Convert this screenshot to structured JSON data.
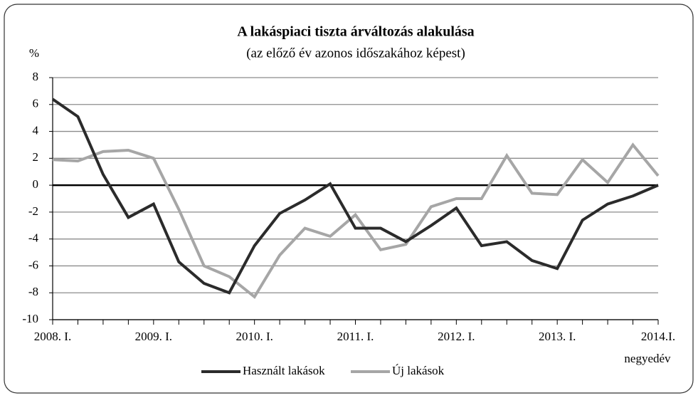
{
  "chart_data": {
    "type": "line",
    "title": "A lakáspiaci tiszta árváltozás alakulása",
    "subtitle": "(az előző év azonos időszakához képest)",
    "y_axis_label": "%",
    "x_axis_label": "negyedév",
    "categories": [
      "2008. I.",
      null,
      null,
      null,
      "2009. I.",
      null,
      null,
      null,
      "2010. I.",
      null,
      null,
      null,
      "2011. I.",
      null,
      null,
      null,
      "2012. I.",
      null,
      null,
      null,
      "2013. I.",
      null,
      null,
      null,
      "2014.I."
    ],
    "series": [
      {
        "name": "Használt lakások",
        "color": "#2b2b2b",
        "values": [
          6.4,
          5.1,
          0.8,
          -2.4,
          -1.4,
          -5.7,
          -7.3,
          -8.0,
          -4.5,
          -2.1,
          -1.1,
          0.1,
          -3.2,
          -3.2,
          -4.2,
          -3.0,
          -1.7,
          -4.5,
          -4.2,
          -5.6,
          -6.2,
          -2.6,
          -1.4,
          -0.8,
          0.0
        ]
      },
      {
        "name": "Új lakások",
        "color": "#a6a6a6",
        "values": [
          1.9,
          1.8,
          2.5,
          2.6,
          2.0,
          -1.8,
          -6.0,
          -6.8,
          -8.3,
          -5.2,
          -3.2,
          -3.8,
          -2.2,
          -4.8,
          -4.4,
          -1.6,
          -1.0,
          -1.0,
          2.2,
          -0.6,
          -0.7,
          1.9,
          0.2,
          3.0,
          0.7
        ]
      }
    ],
    "ylim": [
      -10,
      8
    ],
    "yticks": [
      -10,
      -8,
      -6,
      -4,
      -2,
      0,
      2,
      4,
      6,
      8
    ],
    "grid": true,
    "legend": "bottom"
  }
}
